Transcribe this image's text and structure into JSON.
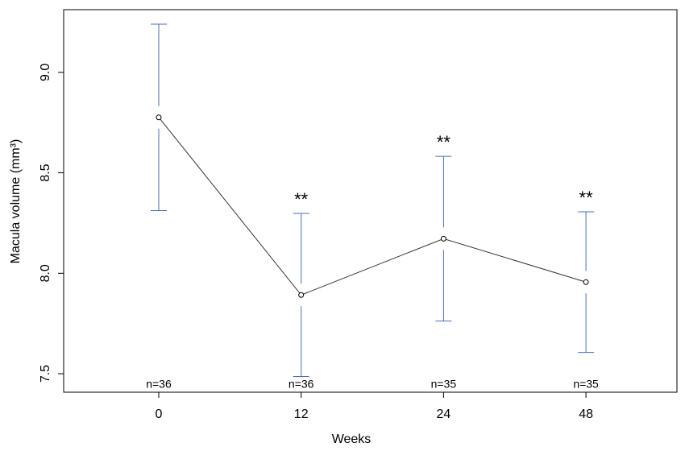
{
  "chart_data": {
    "type": "line",
    "x_label": "Weeks",
    "y_label": "Macula volume (mm³)",
    "categories": [
      "0",
      "12",
      "24",
      "48"
    ],
    "values": [
      8.776,
      7.892,
      8.172,
      7.956
    ],
    "errors": [
      0.464,
      0.406,
      0.41,
      0.35
    ],
    "significance": [
      null,
      "**",
      "**",
      "**"
    ],
    "n_labels": [
      "n=36",
      "n=36",
      "n=35",
      "n=35"
    ],
    "color": "#333333",
    "error_color": "#4a6fb5",
    "ylim": [
      7.408,
      9.312
    ],
    "yticks": [
      7.5,
      {
        "value": 8,
        "label": "8.0"
      },
      8.5,
      {
        "value": 9,
        "label": "9.0"
      }
    ]
  }
}
